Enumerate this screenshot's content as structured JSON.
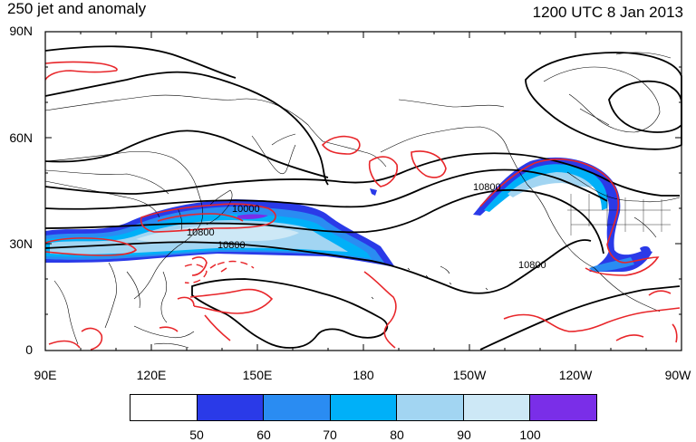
{
  "title": {
    "left": "250 jet and anomaly",
    "right": "1200 UTC 8 Jan 2013"
  },
  "lat_labels": [
    "90N",
    "60N",
    "30N",
    "0"
  ],
  "lon_labels": [
    "90E",
    "120E",
    "150E",
    "180",
    "150W",
    "120W",
    "90W"
  ],
  "contour_labels": [
    "10000",
    "10800",
    "10800",
    "10800",
    "10800"
  ],
  "colorbar": {
    "colors": [
      "#ffffff",
      "#2a3ae8",
      "#2a8cf2",
      "#00b0f8",
      "#a2d5f2",
      "#cde8f6",
      "#7a2ee8"
    ],
    "labels": [
      "50",
      "60",
      "70",
      "80",
      "90",
      "100"
    ]
  },
  "legend_colors": {
    "anomaly": "#e8262a",
    "geopotential": "#000000"
  }
}
